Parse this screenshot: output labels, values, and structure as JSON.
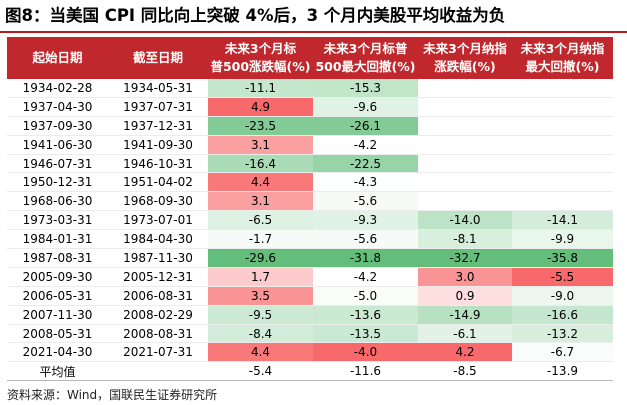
{
  "title": "图8：当美国 CPI 同比向上突破 4%后，3 个月内美股平均收益为负",
  "headers": [
    [
      "起始日期"
    ],
    [
      "截至日期"
    ],
    [
      "未来3个月标",
      "普500涨跌幅(%)"
    ],
    [
      "未来3个月标普",
      "500最大回撤(%)"
    ],
    [
      "未来3个月纳指",
      "涨跌幅(%)"
    ],
    [
      "未来3个月纳指",
      "最大回撤(%)"
    ]
  ],
  "rows": [
    {
      "start": "1934-02-28",
      "end": "1934-05-31",
      "sp_ret": "-11.1",
      "sp_dd": "-15.3",
      "nq_ret": "",
      "nq_dd": ""
    },
    {
      "start": "1937-04-30",
      "end": "1937-07-31",
      "sp_ret": "4.9",
      "sp_dd": "-9.6",
      "nq_ret": "",
      "nq_dd": ""
    },
    {
      "start": "1937-09-30",
      "end": "1937-12-31",
      "sp_ret": "-23.5",
      "sp_dd": "-26.1",
      "nq_ret": "",
      "nq_dd": ""
    },
    {
      "start": "1941-06-30",
      "end": "1941-09-30",
      "sp_ret": "3.1",
      "sp_dd": "-4.2",
      "nq_ret": "",
      "nq_dd": ""
    },
    {
      "start": "1946-07-31",
      "end": "1946-10-31",
      "sp_ret": "-16.4",
      "sp_dd": "-22.5",
      "nq_ret": "",
      "nq_dd": ""
    },
    {
      "start": "1950-12-31",
      "end": "1951-04-02",
      "sp_ret": "4.4",
      "sp_dd": "-4.3",
      "nq_ret": "",
      "nq_dd": ""
    },
    {
      "start": "1968-06-30",
      "end": "1968-09-30",
      "sp_ret": "3.1",
      "sp_dd": "-5.6",
      "nq_ret": "",
      "nq_dd": ""
    },
    {
      "start": "1973-03-31",
      "end": "1973-07-01",
      "sp_ret": "-6.5",
      "sp_dd": "-9.3",
      "nq_ret": "-14.0",
      "nq_dd": "-14.1"
    },
    {
      "start": "1984-01-31",
      "end": "1984-04-30",
      "sp_ret": "-1.7",
      "sp_dd": "-5.6",
      "nq_ret": "-8.1",
      "nq_dd": "-9.9"
    },
    {
      "start": "1987-08-31",
      "end": "1987-11-30",
      "sp_ret": "-29.6",
      "sp_dd": "-31.8",
      "nq_ret": "-32.7",
      "nq_dd": "-35.8"
    },
    {
      "start": "2005-09-30",
      "end": "2005-12-31",
      "sp_ret": "1.7",
      "sp_dd": "-4.2",
      "nq_ret": "3.0",
      "nq_dd": "-5.5"
    },
    {
      "start": "2006-05-31",
      "end": "2006-08-31",
      "sp_ret": "3.5",
      "sp_dd": "-5.0",
      "nq_ret": "0.9",
      "nq_dd": "-9.0"
    },
    {
      "start": "2007-11-30",
      "end": "2008-02-29",
      "sp_ret": "-9.5",
      "sp_dd": "-13.6",
      "nq_ret": "-14.9",
      "nq_dd": "-16.6"
    },
    {
      "start": "2008-05-31",
      "end": "2008-08-31",
      "sp_ret": "-8.4",
      "sp_dd": "-13.5",
      "nq_ret": "-6.1",
      "nq_dd": "-13.2"
    },
    {
      "start": "2021-04-30",
      "end": "2021-07-31",
      "sp_ret": "4.4",
      "sp_dd": "-4.0",
      "nq_ret": "4.2",
      "nq_dd": "-6.7"
    }
  ],
  "average": {
    "label": "平均值",
    "sp_ret": "-5.4",
    "sp_dd": "-11.6",
    "nq_ret": "-8.5",
    "nq_dd": "-13.9"
  },
  "source": "资料来源：Wind，国联民生证券研究所",
  "colors": {
    "header_bg": "#c0282d",
    "rule": "#b71c1c",
    "positive_max": "#f8696b",
    "negative_max": "#63be7b",
    "neutral": "#ffffff"
  }
}
